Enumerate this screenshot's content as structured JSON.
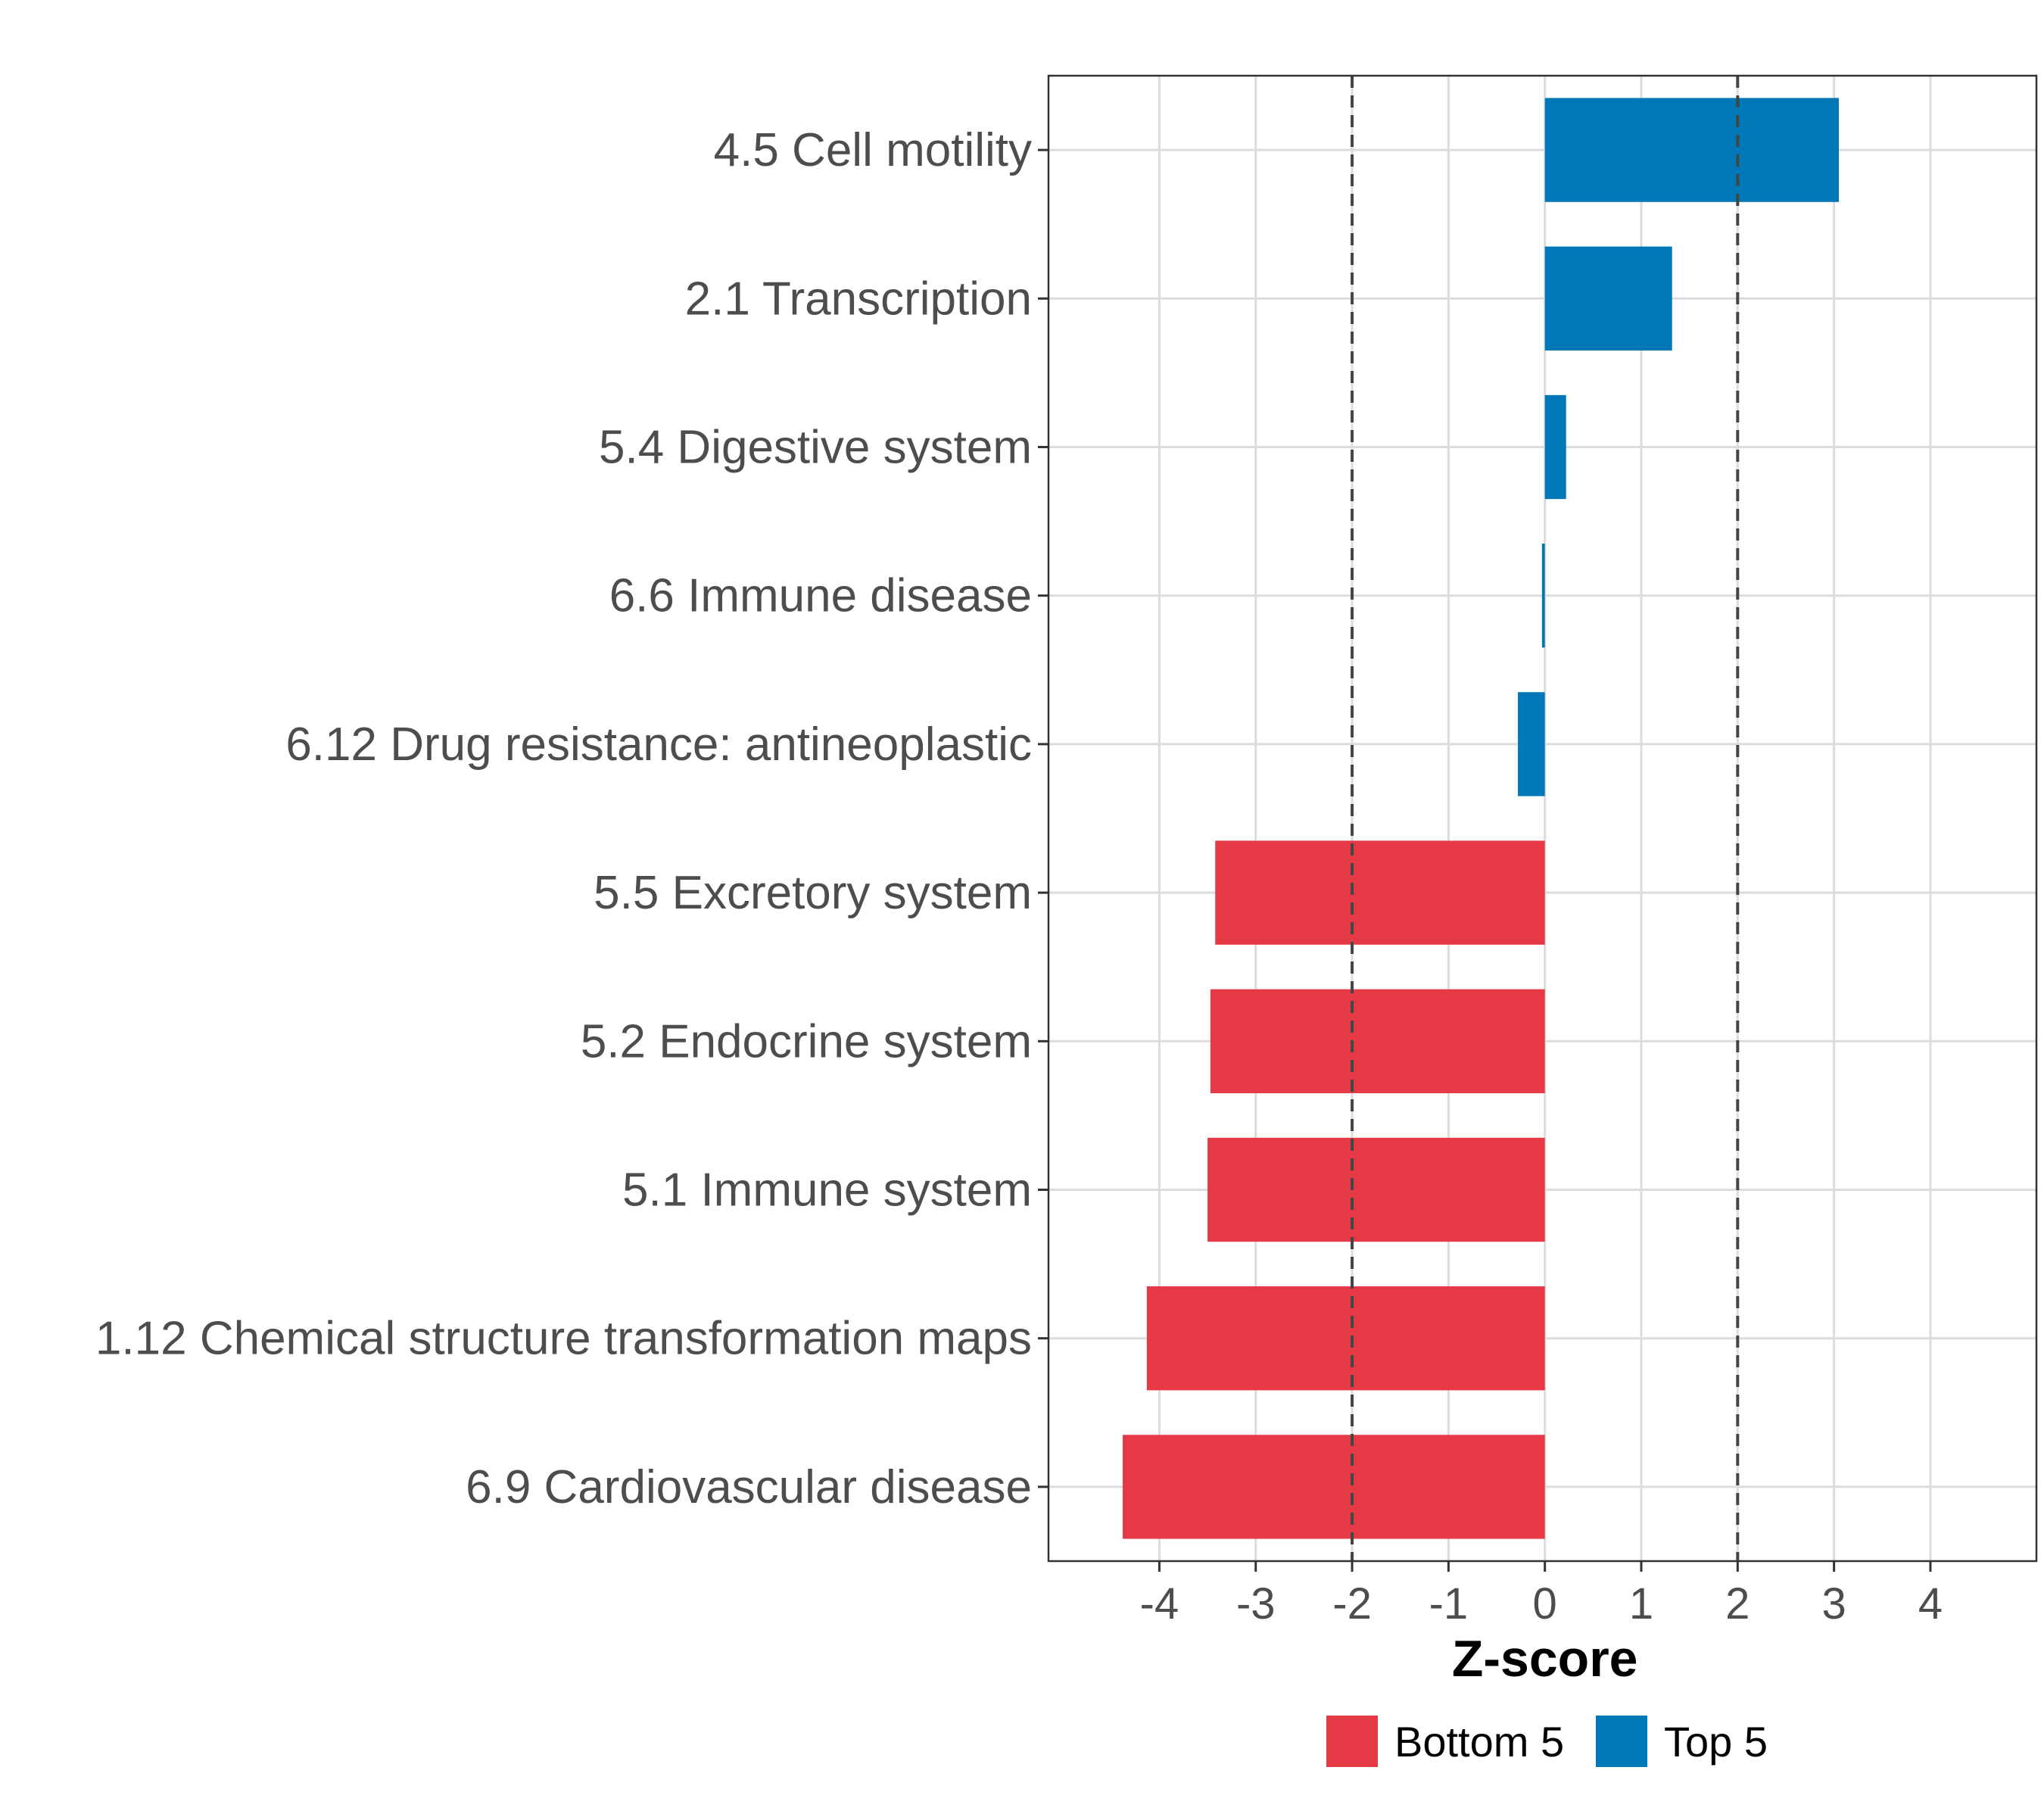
{
  "chart_data": {
    "type": "bar",
    "orientation": "horizontal",
    "categories": [
      "4.5 Cell motility",
      "2.1 Transcription",
      "5.4 Digestive system",
      "6.6 Immune disease",
      "6.12 Drug resistance: antineoplastic",
      "5.5 Excretory system",
      "5.2 Endocrine system",
      "5.1 Immune system",
      "1.12 Chemical structure transformation maps",
      "6.9 Cardiovascular disease"
    ],
    "values": [
      3.05,
      1.32,
      0.22,
      -0.03,
      -0.28,
      -3.42,
      -3.47,
      -3.5,
      -4.13,
      -4.38
    ],
    "groups": [
      "Top 5",
      "Top 5",
      "Top 5",
      "Top 5",
      "Top 5",
      "Bottom 5",
      "Bottom 5",
      "Bottom 5",
      "Bottom 5",
      "Bottom 5"
    ],
    "xlabel": "Z-score",
    "ylabel": "",
    "xlim": [
      -5.15,
      5.1
    ],
    "xticks": [
      "-4",
      "-3",
      "-2",
      "-1",
      "0",
      "1",
      "2",
      "3",
      "4"
    ],
    "reference_lines": [
      -2,
      2
    ],
    "grid": true,
    "legend": {
      "placement": "bottom",
      "entries": [
        {
          "label": "Bottom 5",
          "color": "#e63946"
        },
        {
          "label": "Top 5",
          "color": "#0077b6"
        }
      ]
    },
    "colors": {
      "Top 5": "#0077b6",
      "Bottom 5": "#e63946"
    }
  }
}
